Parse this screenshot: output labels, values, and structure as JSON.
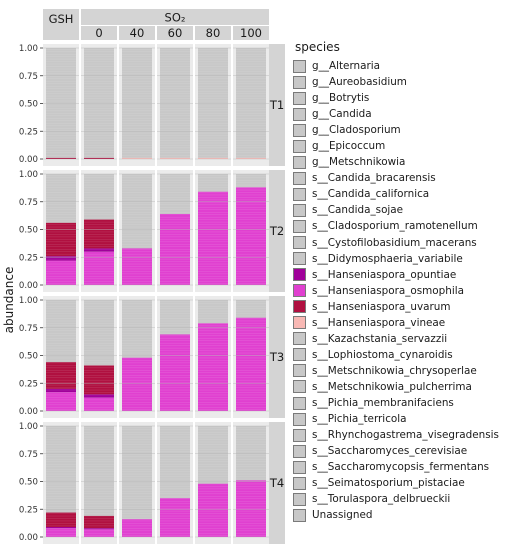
{
  "chart_data": {
    "type": "bar",
    "stacked": true,
    "ylabel": "abundance",
    "yticks": [
      "0.00",
      "0.25",
      "0.50",
      "0.75",
      "1.00"
    ],
    "ylim": [
      0,
      1
    ],
    "column_groups": [
      {
        "label": "GSH",
        "columns": [
          {
            "key": "GSH",
            "label": ""
          }
        ]
      },
      {
        "label": "SO₂",
        "columns": [
          {
            "key": "0",
            "label": "0"
          },
          {
            "key": "40",
            "label": "40"
          },
          {
            "key": "60",
            "label": "60"
          },
          {
            "key": "80",
            "label": "80"
          },
          {
            "key": "100",
            "label": "100"
          }
        ]
      }
    ],
    "rows": [
      "T1",
      "T2",
      "T3",
      "T4"
    ],
    "legend_title": "species",
    "legend_position": "right",
    "colors": {
      "default": "#c8c8c8",
      "s__Hanseniaspora_opuntiae": "#a0009a",
      "s__Hanseniaspora_osmophila": "#e040d0",
      "s__Hanseniaspora_uvarum": "#b01040",
      "s__Hanseniaspora_vineae": "#f8b8b4",
      "gridline": "#b4b4b4",
      "strip": "#d4d4d4"
    },
    "species": [
      "g__Alternaria",
      "g__Aureobasidium",
      "g__Botrytis",
      "g__Candida",
      "g__Cladosporium",
      "g__Epicoccum",
      "g__Metschnikowia",
      "s__Candida_bracarensis",
      "s__Candida_californica",
      "s__Candida_sojae",
      "s__Cladosporium_ramotenellum",
      "s__Cystofilobasidium_macerans",
      "s__Didymosphaeria_variabile",
      "s__Hanseniaspora_opuntiae",
      "s__Hanseniaspora_osmophila",
      "s__Hanseniaspora_uvarum",
      "s__Hanseniaspora_vineae",
      "s__Kazachstania_servazzii",
      "s__Lophiostoma_cynaroidis",
      "s__Metschnikowia_chrysoperlae",
      "s__Metschnikowia_pulcherrima",
      "s__Pichia_membranifaciens",
      "s__Pichia_terricola",
      "s__Rhynchogastrema_visegradensis",
      "s__Saccharomyces_cerevisiae",
      "s__Saccharomycopsis_fermentans",
      "s__Seimatosporium_pistaciae",
      "s__Torulaspora_delbrueckii",
      "Unassigned"
    ],
    "bars": {
      "T1": {
        "GSH": [
          {
            "species": "s__Hanseniaspora_uvarum",
            "value": 0.01
          }
        ],
        "0": [
          {
            "species": "s__Hanseniaspora_uvarum",
            "value": 0.01
          }
        ],
        "40": [
          {
            "species": "s__Hanseniaspora_vineae",
            "value": 0.01
          }
        ],
        "60": [
          {
            "species": "s__Hanseniaspora_vineae",
            "value": 0.01
          }
        ],
        "80": [
          {
            "species": "s__Hanseniaspora_vineae",
            "value": 0.01
          }
        ],
        "100": [
          {
            "species": "s__Hanseniaspora_vineae",
            "value": 0.01
          }
        ]
      },
      "T2": {
        "GSH": [
          {
            "species": "s__Hanseniaspora_osmophila",
            "value": 0.22
          },
          {
            "species": "s__Hanseniaspora_opuntiae",
            "value": 0.04
          },
          {
            "species": "s__Hanseniaspora_uvarum",
            "value": 0.3
          }
        ],
        "0": [
          {
            "species": "s__Hanseniaspora_osmophila",
            "value": 0.3
          },
          {
            "species": "s__Hanseniaspora_opuntiae",
            "value": 0.03
          },
          {
            "species": "s__Hanseniaspora_uvarum",
            "value": 0.26
          }
        ],
        "40": [
          {
            "species": "s__Hanseniaspora_osmophila",
            "value": 0.33
          }
        ],
        "60": [
          {
            "species": "s__Hanseniaspora_osmophila",
            "value": 0.64
          }
        ],
        "80": [
          {
            "species": "s__Hanseniaspora_osmophila",
            "value": 0.84
          }
        ],
        "100": [
          {
            "species": "s__Hanseniaspora_osmophila",
            "value": 0.88
          }
        ]
      },
      "T3": {
        "GSH": [
          {
            "species": "s__Hanseniaspora_osmophila",
            "value": 0.17
          },
          {
            "species": "s__Hanseniaspora_opuntiae",
            "value": 0.03
          },
          {
            "species": "s__Hanseniaspora_uvarum",
            "value": 0.24
          }
        ],
        "0": [
          {
            "species": "s__Hanseniaspora_osmophila",
            "value": 0.12
          },
          {
            "species": "s__Hanseniaspora_opuntiae",
            "value": 0.03
          },
          {
            "species": "s__Hanseniaspora_uvarum",
            "value": 0.26
          }
        ],
        "40": [
          {
            "species": "s__Hanseniaspora_osmophila",
            "value": 0.48
          }
        ],
        "60": [
          {
            "species": "s__Hanseniaspora_osmophila",
            "value": 0.69
          }
        ],
        "80": [
          {
            "species": "s__Hanseniaspora_osmophila",
            "value": 0.79
          }
        ],
        "100": [
          {
            "species": "s__Hanseniaspora_osmophila",
            "value": 0.84
          }
        ]
      },
      "T4": {
        "GSH": [
          {
            "species": "s__Hanseniaspora_osmophila",
            "value": 0.08
          },
          {
            "species": "s__Hanseniaspora_opuntiae",
            "value": 0.01
          },
          {
            "species": "s__Hanseniaspora_uvarum",
            "value": 0.13
          }
        ],
        "0": [
          {
            "species": "s__Hanseniaspora_osmophila",
            "value": 0.07
          },
          {
            "species": "s__Hanseniaspora_opuntiae",
            "value": 0.01
          },
          {
            "species": "s__Hanseniaspora_uvarum",
            "value": 0.11
          }
        ],
        "40": [
          {
            "species": "s__Hanseniaspora_osmophila",
            "value": 0.16
          }
        ],
        "60": [
          {
            "species": "s__Hanseniaspora_osmophila",
            "value": 0.35
          }
        ],
        "80": [
          {
            "species": "s__Hanseniaspora_osmophila",
            "value": 0.48
          }
        ],
        "100": [
          {
            "species": "s__Hanseniaspora_osmophila",
            "value": 0.51
          }
        ]
      }
    }
  }
}
